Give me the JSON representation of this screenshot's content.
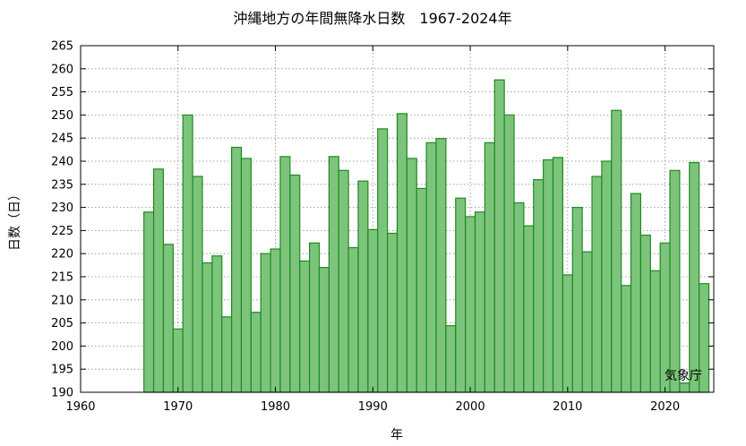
{
  "chart_data": {
    "type": "bar",
    "title": "沖縄地方の年間無降水日数　1967-2024年",
    "xlabel": "年",
    "ylabel": "日数（日）",
    "credit": "気象庁",
    "xlim": [
      1960,
      2025
    ],
    "ylim": [
      190,
      265
    ],
    "xticks": [
      1960,
      1970,
      1980,
      1990,
      2000,
      2010,
      2020
    ],
    "yticks": [
      190,
      195,
      200,
      205,
      210,
      215,
      220,
      225,
      230,
      235,
      240,
      245,
      250,
      255,
      260,
      265
    ],
    "grid": true,
    "bar_color": "#7cc47c",
    "bar_edge_color": "#1e8a1e",
    "x": [
      1967,
      1968,
      1969,
      1970,
      1971,
      1972,
      1973,
      1974,
      1975,
      1976,
      1977,
      1978,
      1979,
      1980,
      1981,
      1982,
      1983,
      1984,
      1985,
      1986,
      1987,
      1988,
      1989,
      1990,
      1991,
      1992,
      1993,
      1994,
      1995,
      1996,
      1997,
      1998,
      1999,
      2000,
      2001,
      2002,
      2003,
      2004,
      2005,
      2006,
      2007,
      2008,
      2009,
      2010,
      2011,
      2012,
      2013,
      2014,
      2015,
      2016,
      2017,
      2018,
      2019,
      2020,
      2021,
      2022,
      2023,
      2024
    ],
    "values": [
      229,
      238.3,
      222,
      203.7,
      250,
      236.7,
      218,
      219.5,
      206.3,
      243,
      240.6,
      207.3,
      220,
      221,
      241,
      237,
      218.4,
      222.3,
      217,
      241,
      238,
      221.3,
      235.7,
      225.2,
      247,
      224.4,
      250.3,
      240.6,
      234.1,
      244,
      244.9,
      204.4,
      232,
      228,
      229,
      244,
      257.6,
      250,
      231,
      226,
      236,
      240.3,
      240.8,
      215.4,
      230,
      220.4,
      236.7,
      240,
      251,
      213.1,
      233,
      224,
      216.3,
      222.3,
      238,
      192,
      239.7,
      213.5
    ]
  }
}
